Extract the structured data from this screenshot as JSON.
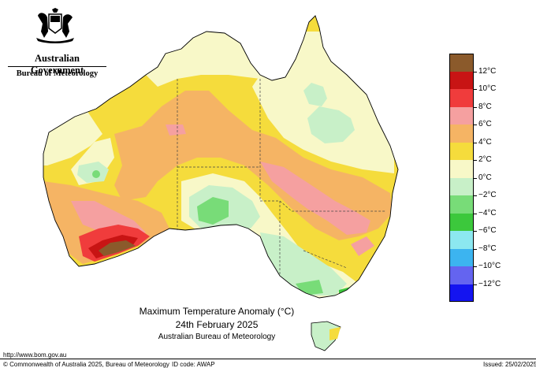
{
  "header": {
    "gov_name": "Australian Government",
    "agency": "Bureau of Meteorology",
    "crest_icon": "coat-of-arms-icon"
  },
  "title": {
    "line1": "Maximum Temperature Anomaly (°C)",
    "line2": "24th February 2025",
    "line3": "Australian Bureau of Meteorology"
  },
  "legend": {
    "labels": [
      "12°C",
      "10°C",
      "8°C",
      "6°C",
      "4°C",
      "2°C",
      "0°C",
      "−2°C",
      "−4°C",
      "−6°C",
      "−8°C",
      "−10°C",
      "−12°C"
    ],
    "colors": [
      "#8b5a2b",
      "#c81414",
      "#f03c3c",
      "#f5a0a0",
      "#f5b464",
      "#f5dc3c",
      "#f8f8c8",
      "#c8f0c8",
      "#78dc78",
      "#3cc83c",
      "#8ce8f0",
      "#3cb4f0",
      "#6464f0",
      "#1414f0"
    ]
  },
  "footer": {
    "url": "http://www.bom.gov.au",
    "copyright": "© Commonwealth of Australia 2025, Bureau of Meteorology",
    "id_code": "ID code: AWAP",
    "issued": "Issued: 25/02/2025"
  }
}
